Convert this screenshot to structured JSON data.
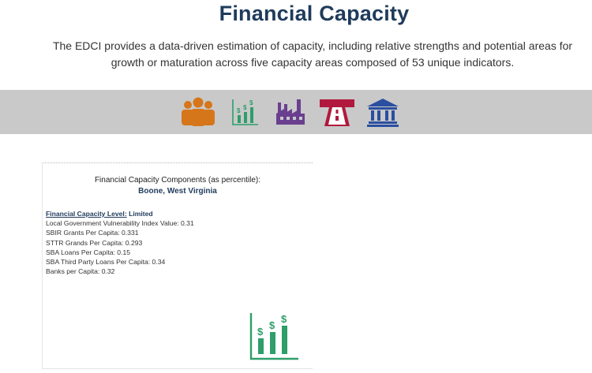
{
  "page": {
    "title": "Financial Capacity",
    "intro": "The EDCI provides a data-driven estimation of capacity, including relative strengths and potential areas for growth or maturation across five capacity areas composed of 53 unique indicators."
  },
  "icons": [
    {
      "name": "people-icon",
      "color": "#d6761a"
    },
    {
      "name": "finance-chart-icon",
      "color": "#2e9e6a"
    },
    {
      "name": "factory-icon",
      "color": "#6a3f8f"
    },
    {
      "name": "road-icon",
      "color": "#b0193d"
    },
    {
      "name": "bank-icon",
      "color": "#2b4fa0"
    }
  ],
  "card": {
    "heading": "Financial Capacity Components (as percentile):",
    "location": "Boone, West Virginia",
    "level_label": "Financial Capacity Level:",
    "level_value": "Limited",
    "lines": [
      "Local Government Vulnerability Index Value: 0.31",
      "SBIR Grants Per Capita: 0.331",
      "STTR Grands Per Capita: 0.293",
      "SBA Loans Per Capita: 0.15",
      "SBA Third Party Loans Per Capita: 0.34",
      "Banks per Capita: 0.32"
    ]
  }
}
